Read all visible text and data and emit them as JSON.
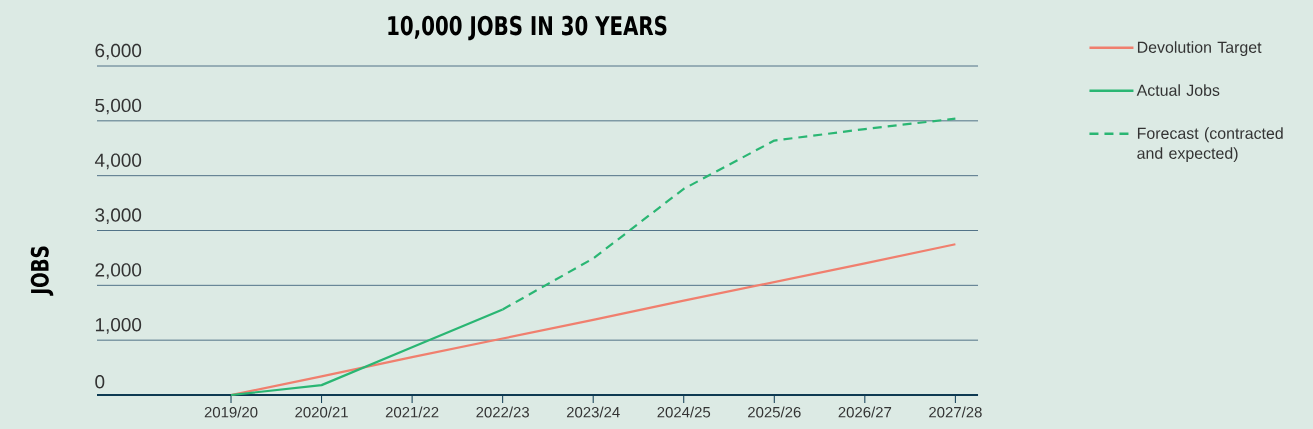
{
  "chart_data": {
    "type": "line",
    "title": "10,000 JOBS IN 30 YEARS",
    "ylabel": "JOBS",
    "categories": [
      "2019/20",
      "2020/21",
      "2021/22",
      "2022/23",
      "2023/24",
      "2024/25",
      "2025/26",
      "2026/27",
      "2027/28"
    ],
    "series": [
      {
        "name": "Devolution Target",
        "color": "#f07f6e",
        "line_style": "solid",
        "values": [
          0,
          340,
          690,
          1030,
          1370,
          1720,
          2060,
          2400,
          2750
        ]
      },
      {
        "name": "Actual Jobs",
        "color": "#2ab673",
        "line_style": "solid",
        "values": [
          0,
          180,
          870,
          1560,
          null,
          null,
          null,
          null,
          null
        ]
      },
      {
        "name": "Forecast (contracted and expected)",
        "color": "#2ab673",
        "line_style": "dashed",
        "values": [
          null,
          null,
          null,
          1560,
          2490,
          3760,
          4640,
          4850,
          5040
        ]
      }
    ],
    "ylim": [
      0,
      6000
    ],
    "yticks": [
      {
        "value": 0,
        "label": "0"
      },
      {
        "value": 1000,
        "label": "1,000"
      },
      {
        "value": 2000,
        "label": "2,000"
      },
      {
        "value": 3000,
        "label": "3,000"
      },
      {
        "value": 4000,
        "label": "4,000"
      },
      {
        "value": 5000,
        "label": "5,000"
      },
      {
        "value": 6000,
        "label": "6,000"
      }
    ],
    "grid": "y",
    "legend": "right",
    "marker": "none"
  }
}
